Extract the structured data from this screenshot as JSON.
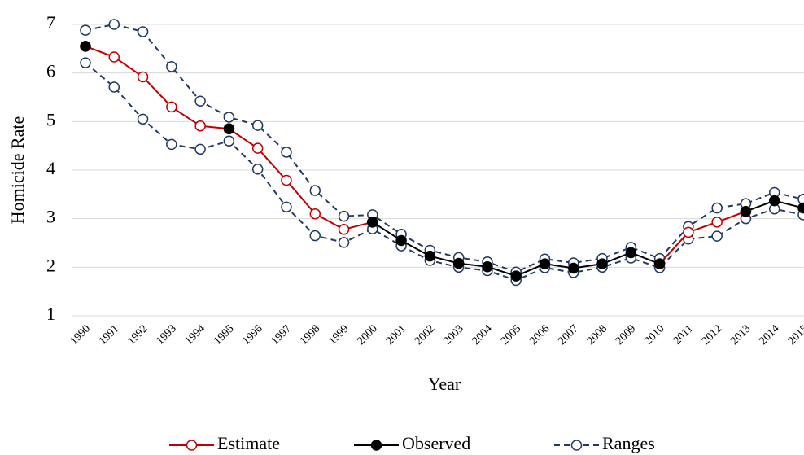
{
  "chart_data": {
    "type": "line",
    "x_label": "Year",
    "y_label": "Homicide Rate",
    "categories": [
      "1990",
      "1991",
      "1992",
      "1993",
      "1994",
      "1995",
      "1996",
      "1997",
      "1998",
      "1999",
      "2000",
      "2001",
      "2002",
      "2003",
      "2004",
      "2005",
      "2006",
      "2007",
      "2008",
      "2009",
      "2010",
      "2011",
      "2012",
      "2013",
      "2014",
      "2015"
    ],
    "ylim": [
      1,
      7
    ],
    "yticks": [
      1,
      2,
      3,
      4,
      5,
      6,
      7
    ],
    "grid": true,
    "legend": "bottom",
    "series": [
      {
        "name": "Estimate",
        "color": "#c00000",
        "marker_fill": "#ffffff",
        "values": [
          6.55,
          6.33,
          5.92,
          5.3,
          4.91,
          4.85,
          4.45,
          3.79,
          3.1,
          2.78,
          2.93,
          null,
          null,
          null,
          null,
          null,
          null,
          null,
          null,
          null,
          2.07,
          2.72,
          2.93,
          3.15,
          null,
          null
        ]
      },
      {
        "name": "Observed",
        "color": "#000000",
        "marker_fill": "#000000",
        "values": [
          6.55,
          null,
          null,
          null,
          null,
          4.85,
          null,
          null,
          null,
          null,
          2.93,
          2.55,
          2.23,
          2.08,
          2.01,
          1.82,
          2.07,
          1.98,
          2.07,
          2.3,
          2.07,
          null,
          null,
          3.15,
          3.37,
          3.22
        ]
      },
      {
        "name": "Ranges",
        "color": "#203864",
        "marker_fill": "#ffffff",
        "dashed": true,
        "upper": [
          6.88,
          7.0,
          6.85,
          6.13,
          5.42,
          5.09,
          4.92,
          4.37,
          3.58,
          3.05,
          3.08,
          2.68,
          2.35,
          2.2,
          2.11,
          1.9,
          2.17,
          2.09,
          2.18,
          2.41,
          2.18,
          2.84,
          3.22,
          3.31,
          3.54,
          3.4
        ],
        "lower": [
          6.21,
          5.71,
          5.05,
          4.53,
          4.43,
          4.6,
          4.02,
          3.24,
          2.65,
          2.51,
          2.79,
          2.44,
          2.14,
          2.0,
          1.93,
          1.73,
          1.99,
          1.89,
          2.0,
          2.19,
          1.99,
          2.58,
          2.64,
          3.0,
          3.2,
          3.08
        ]
      }
    ]
  }
}
